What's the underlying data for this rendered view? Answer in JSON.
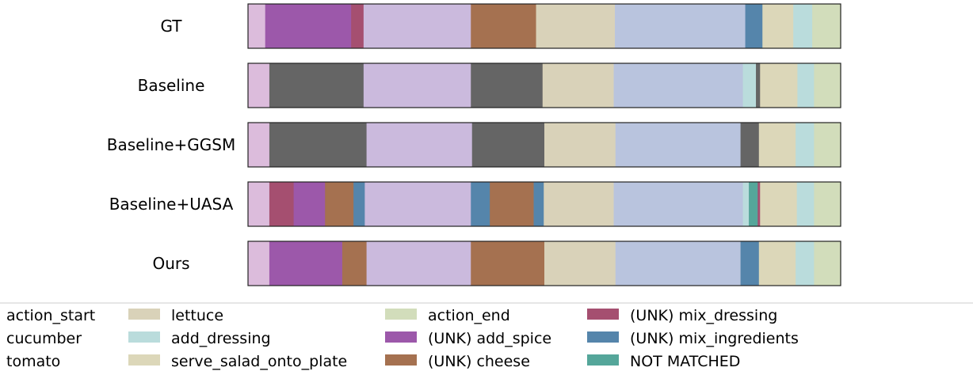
{
  "chart_data": {
    "type": "segmentation_bars",
    "rows": [
      {
        "label": "GT",
        "segments": [
          [
            0,
            0.029,
            "#dcbcdc"
          ],
          [
            0.029,
            0.174,
            "#9c58aa"
          ],
          [
            0.174,
            0.195,
            "#a54f70"
          ],
          [
            0.195,
            0.376,
            "#cbbadd"
          ],
          [
            0.376,
            0.486,
            "#a57150"
          ],
          [
            0.486,
            0.619,
            "#d9d2b9"
          ],
          [
            0.619,
            0.839,
            "#b9c4de"
          ],
          [
            0.839,
            0.868,
            "#5585ab"
          ],
          [
            0.868,
            0.92,
            "#dcd7b9"
          ],
          [
            0.92,
            0.952,
            "#badcdc"
          ],
          [
            0.952,
            1,
            "#d2ddbb"
          ]
        ]
      },
      {
        "label": "Baseline",
        "segments": [
          [
            0,
            0.036,
            "#dcbcdc"
          ],
          [
            0.036,
            0.195,
            "#656565"
          ],
          [
            0.195,
            0.376,
            "#cbbadd"
          ],
          [
            0.376,
            0.497,
            "#656565"
          ],
          [
            0.497,
            0.617,
            "#d9d2b9"
          ],
          [
            0.617,
            0.835,
            "#b9c4de"
          ],
          [
            0.835,
            0.857,
            "#badcdc"
          ],
          [
            0.857,
            0.864,
            "#656565"
          ],
          [
            0.864,
            0.927,
            "#dcd7b9"
          ],
          [
            0.927,
            0.955,
            "#badcdc"
          ],
          [
            0.955,
            1,
            "#d2ddbb"
          ]
        ]
      },
      {
        "label": "Baseline+GGSM",
        "segments": [
          [
            0,
            0.036,
            "#dcbcdc"
          ],
          [
            0.036,
            0.2,
            "#656565"
          ],
          [
            0.2,
            0.378,
            "#cbbadd"
          ],
          [
            0.378,
            0.5,
            "#656565"
          ],
          [
            0.5,
            0.62,
            "#d9d2b9"
          ],
          [
            0.62,
            0.831,
            "#b9c4de"
          ],
          [
            0.831,
            0.862,
            "#656565"
          ],
          [
            0.862,
            0.924,
            "#dcd7b9"
          ],
          [
            0.924,
            0.955,
            "#badcdc"
          ],
          [
            0.955,
            1,
            "#d2ddbb"
          ]
        ]
      },
      {
        "label": "Baseline+UASA",
        "segments": [
          [
            0,
            0.036,
            "#dcbcdc"
          ],
          [
            0.036,
            0.077,
            "#a54f70"
          ],
          [
            0.077,
            0.13,
            "#9c58aa"
          ],
          [
            0.13,
            0.178,
            "#a57150"
          ],
          [
            0.178,
            0.197,
            "#5585ab"
          ],
          [
            0.197,
            0.376,
            "#cbbadd"
          ],
          [
            0.376,
            0.408,
            "#5585ab"
          ],
          [
            0.408,
            0.482,
            "#a57150"
          ],
          [
            0.482,
            0.499,
            "#5585ab"
          ],
          [
            0.499,
            0.617,
            "#d9d2b9"
          ],
          [
            0.617,
            0.835,
            "#b9c4de"
          ],
          [
            0.835,
            0.845,
            "#badcdc"
          ],
          [
            0.845,
            0.86,
            "#55a69a"
          ],
          [
            0.86,
            0.864,
            "#a54f70"
          ],
          [
            0.864,
            0.926,
            "#dcd7b9"
          ],
          [
            0.926,
            0.955,
            "#badcdc"
          ],
          [
            0.955,
            1,
            "#d2ddbb"
          ]
        ]
      },
      {
        "label": "Ours",
        "segments": [
          [
            0,
            0.036,
            "#dcbcdc"
          ],
          [
            0.036,
            0.159,
            "#9c58aa"
          ],
          [
            0.159,
            0.2,
            "#a57150"
          ],
          [
            0.2,
            0.376,
            "#cbbadd"
          ],
          [
            0.376,
            0.5,
            "#a57150"
          ],
          [
            0.5,
            0.62,
            "#d9d2b9"
          ],
          [
            0.62,
            0.831,
            "#b9c4de"
          ],
          [
            0.831,
            0.862,
            "#5585ab"
          ],
          [
            0.862,
            0.924,
            "#dcd7b9"
          ],
          [
            0.924,
            0.955,
            "#badcdc"
          ],
          [
            0.955,
            1,
            "#d2ddbb"
          ]
        ]
      }
    ],
    "legend": [
      {
        "label": "action_start",
        "color": null
      },
      {
        "label": "cucumber",
        "color": null
      },
      {
        "label": "tomato",
        "color": null
      },
      {
        "label": "lettuce",
        "color": "#d9d2b9"
      },
      {
        "label": "add_dressing",
        "color": "#badcdc"
      },
      {
        "label": "serve_salad_onto_plate",
        "color": "#dcd7b9"
      },
      {
        "label": "action_end",
        "color": "#d2ddbb"
      },
      {
        "label": "(UNK) add_spice",
        "color": "#9c58aa"
      },
      {
        "label": "(UNK) cheese",
        "color": "#a57150"
      },
      {
        "label": "(UNK) mix_dressing",
        "color": "#a54f70"
      },
      {
        "label": "(UNK) mix_ingredients",
        "color": "#5585ab"
      },
      {
        "label": "NOT MATCHED",
        "color": "#55a69a"
      }
    ]
  }
}
